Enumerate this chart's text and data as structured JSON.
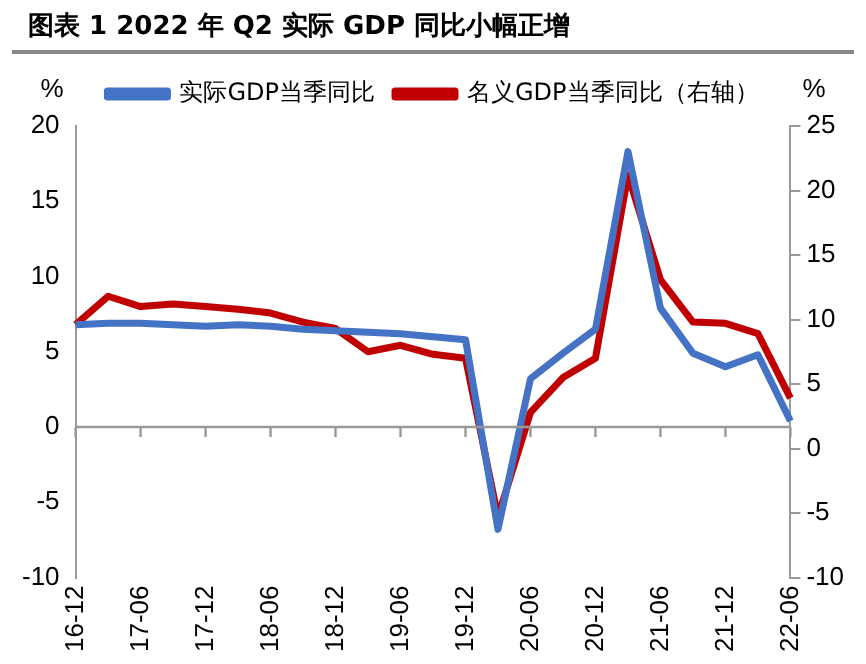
{
  "chart_data": {
    "type": "line",
    "title": "图表 1 2022 年 Q2 实际 GDP 同比小幅正增",
    "categories": [
      "16-12",
      null,
      "17-06",
      null,
      "17-12",
      null,
      "18-06",
      null,
      "18-12",
      null,
      "19-06",
      null,
      "19-12",
      null,
      "20-06",
      null,
      "20-12",
      null,
      "21-06",
      null,
      "21-12",
      null,
      "22-06"
    ],
    "series": [
      {
        "name": "实际GDP当季同比",
        "color": "#4472c4",
        "values": [
          6.8,
          6.9,
          6.9,
          6.8,
          6.7,
          6.8,
          6.7,
          6.5,
          6.4,
          6.3,
          6.2,
          6.0,
          5.8,
          -6.8,
          3.2,
          4.9,
          6.5,
          18.3,
          7.9,
          4.9,
          4.0,
          4.8,
          0.4
        ]
      },
      {
        "name": "名义GDP当季同比（右轴）",
        "color": "#c00000",
        "axis": "y2",
        "values": [
          9.6,
          11.8,
          11.0,
          11.2,
          11.0,
          10.8,
          10.5,
          9.8,
          9.3,
          7.5,
          8.0,
          7.3,
          7.0,
          -5.3,
          2.8,
          5.5,
          7.0,
          21.2,
          13.1,
          9.8,
          9.7,
          8.9,
          3.9
        ]
      }
    ],
    "ylabel": "%",
    "y2label": "%",
    "ylim": [
      -10,
      20
    ],
    "yticks": [
      -10,
      -5,
      0,
      5,
      10,
      15,
      20
    ],
    "y2lim": [
      -10,
      25
    ],
    "y2ticks": [
      -10,
      -5,
      0,
      5,
      10,
      15,
      20,
      25
    ],
    "legend": "top",
    "marker": "none",
    "line_style": "solid"
  }
}
